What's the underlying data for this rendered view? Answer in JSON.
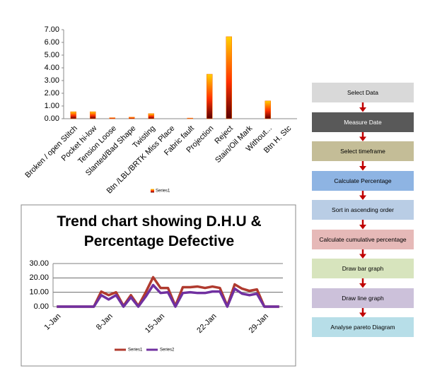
{
  "chart_data": [
    {
      "type": "bar",
      "categories": [
        "Broken / open Stitch",
        "Pocket hi-low",
        "Tension Loose",
        "Slanted/Bad Shape",
        "Twisting",
        "Btn /LBL/BRTK Miss Place",
        "Fabric fault",
        "Projection",
        "Reject",
        "Stain/Oil Mark",
        "Without...",
        "Btn H. Stc"
      ],
      "series": [
        {
          "name": "Series1",
          "color": "#ff6a00",
          "values": [
            0.55,
            0.55,
            0.08,
            0.12,
            0.4,
            0,
            0.05,
            3.5,
            6.45,
            0,
            1.4,
            0
          ]
        }
      ],
      "ylim": [
        0,
        7
      ],
      "yticks": [
        {
          "value": 0,
          "label": "0.00"
        },
        {
          "value": 1,
          "label": "1.00"
        },
        {
          "value": 2,
          "label": "2.00"
        },
        {
          "value": 3,
          "label": "3.00"
        },
        {
          "value": 4,
          "label": "4.00"
        },
        {
          "value": 5,
          "label": "5.00"
        },
        {
          "value": 6,
          "label": "6.00"
        },
        {
          "value": 7,
          "label": "7.00"
        }
      ],
      "grid": false,
      "legend": "bottom"
    },
    {
      "type": "line",
      "title": "Trend chart showing D.H.U & Percentage Defective",
      "categories": [
        "1-Jan",
        null,
        null,
        null,
        null,
        null,
        null,
        "8-Jan",
        null,
        null,
        null,
        null,
        null,
        null,
        "15-Jan",
        null,
        null,
        null,
        null,
        null,
        null,
        "22-Jan",
        null,
        null,
        null,
        null,
        null,
        null,
        "29-Jan",
        null,
        null
      ],
      "series": [
        {
          "name": "Series1",
          "color": "#b03a2e",
          "values": [
            0,
            0,
            0,
            0,
            0,
            0,
            10.5,
            8,
            10,
            0.5,
            8,
            0.5,
            10,
            20.5,
            13,
            13,
            0.5,
            13.5,
            13.5,
            14,
            13,
            14,
            13,
            0.5,
            15.5,
            12.5,
            11,
            12,
            0,
            0,
            0
          ]
        },
        {
          "name": "Series2",
          "color": "#7030a0",
          "values": [
            0,
            0,
            0,
            0,
            0,
            0,
            8,
            5,
            8,
            0,
            6.5,
            0,
            7,
            15,
            9.5,
            10,
            0,
            9.5,
            10,
            9.5,
            9.5,
            10.5,
            10.5,
            0,
            12.5,
            9,
            8,
            9,
            0,
            0,
            0
          ]
        }
      ],
      "ylim": [
        0,
        30
      ],
      "yticks": [
        {
          "value": 0,
          "label": "0.00"
        },
        {
          "value": 10,
          "label": "10.00"
        },
        {
          "value": 20,
          "label": "20.00"
        },
        {
          "value": 30,
          "label": "30.00"
        }
      ],
      "grid": true,
      "legend": "bottom"
    }
  ],
  "flowchart": {
    "steps": [
      {
        "label": "Select Data",
        "color": "#d9d9d9"
      },
      {
        "label": "Measure Date",
        "color": "#595959"
      },
      {
        "label": "Select timeframe",
        "color": "#c4bd97"
      },
      {
        "label": "Calculate Percentage",
        "color": "#8eb4e3"
      },
      {
        "label": "Sort in ascending order",
        "color": "#b9cde5"
      },
      {
        "label": "Calculate cumulative percentage",
        "color": "#e6b9b8"
      },
      {
        "label": "Draw bar graph",
        "color": "#d7e4bd"
      },
      {
        "label": "Draw line graph",
        "color": "#ccc1da"
      },
      {
        "label": "Analyse pareto Diagram",
        "color": "#b7dee8"
      }
    ]
  }
}
